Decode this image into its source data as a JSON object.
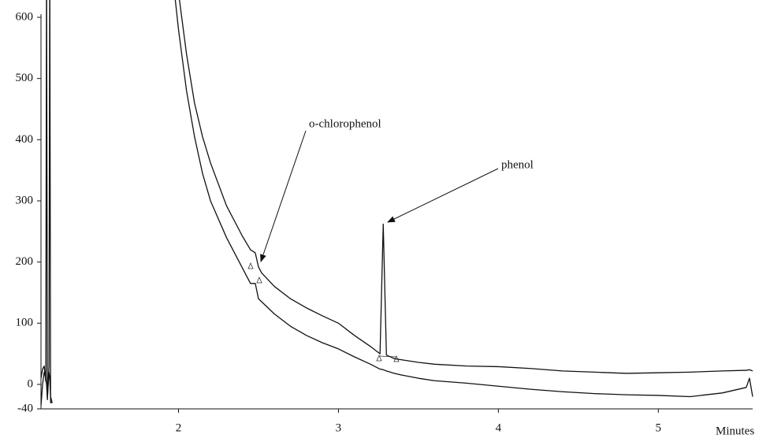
{
  "chart_data": {
    "type": "line",
    "x_label": "Minutes",
    "annotations": [
      "o-chlorophenol",
      "phenol"
    ],
    "x": [
      1.14,
      1.15,
      1.16,
      1.17,
      1.175,
      1.18,
      1.19,
      1.195,
      1.2,
      1.21,
      1.6,
      1.95,
      2.0,
      2.05,
      2.1,
      2.15,
      2.2,
      2.3,
      2.4,
      2.45,
      2.48,
      2.5,
      2.52,
      2.6,
      2.7,
      2.8,
      2.9,
      3.0,
      3.1,
      3.2,
      3.26,
      3.28,
      3.3,
      3.35,
      3.4,
      3.5,
      3.6,
      3.8,
      4.0,
      4.2,
      4.4,
      4.6,
      4.8,
      5.0,
      5.2,
      5.4,
      5.55,
      5.57,
      5.59
    ],
    "series": [
      {
        "color": "#111111",
        "values": [
          10,
          25,
          30,
          5,
          700,
          -20,
          30,
          700,
          -30,
          -30,
          null,
          700,
          640,
          540,
          460,
          405,
          362,
          292,
          242,
          220,
          215,
          192,
          182,
          160,
          140,
          125,
          112,
          100,
          80,
          62,
          50,
          262,
          48,
          42,
          40,
          36,
          33,
          30,
          29,
          26,
          22,
          20,
          18,
          19,
          20,
          22,
          23,
          24,
          22
        ]
      },
      {
        "color": "#111111",
        "values": [
          -35,
          0,
          20,
          10,
          0,
          -25,
          20,
          10,
          -20,
          -30,
          null,
          700,
          580,
          480,
          405,
          345,
          300,
          240,
          190,
          165,
          165,
          140,
          135,
          115,
          95,
          80,
          68,
          58,
          45,
          33,
          25,
          24,
          22,
          18,
          15,
          10,
          6,
          2,
          -3,
          -8,
          -12,
          -15,
          -17,
          -18,
          -20,
          -14,
          -5,
          10,
          -20
        ]
      }
    ],
    "xlim": [
      1.14,
      5.59
    ],
    "xticks": [
      2,
      3,
      4,
      5
    ],
    "ylim": [
      -40,
      600
    ],
    "yticks": [
      600,
      500,
      400,
      300,
      200,
      100,
      0,
      -40
    ],
    "grid": false
  }
}
